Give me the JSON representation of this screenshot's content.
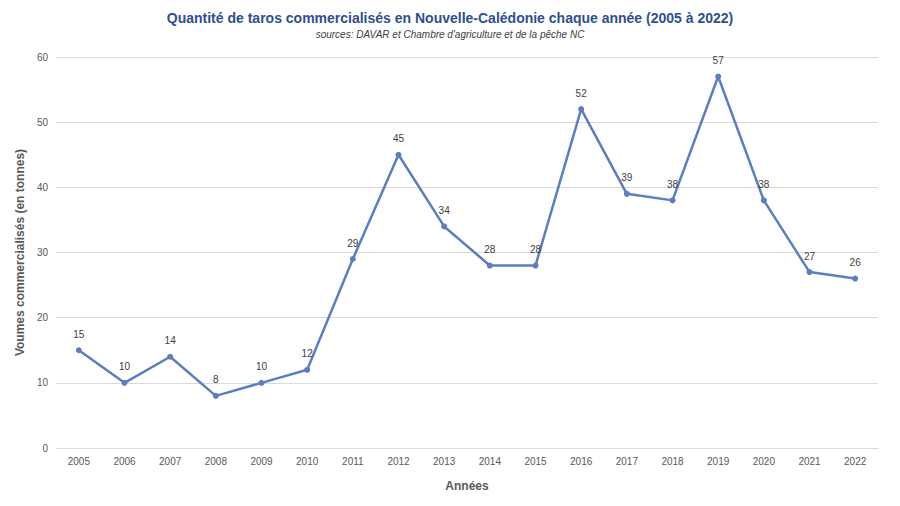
{
  "chart_data": {
    "type": "line",
    "title": "Quantité de taros commercialisés en Nouvelle-Calédonie chaque année (2005 à 2022)",
    "subtitle": "sources: DAVAR et Chambre d'agriculture et de la pêche NC",
    "x_label": "Années",
    "y_label": "Voumes commercialisés (en tonnes)",
    "categories": [
      "2005",
      "2006",
      "2007",
      "2008",
      "2009",
      "2010",
      "2011",
      "2012",
      "2013",
      "2014",
      "2015",
      "2016",
      "2017",
      "2018",
      "2019",
      "2020",
      "2021",
      "2022"
    ],
    "values": [
      15,
      10,
      14,
      8,
      10,
      12,
      29,
      45,
      34,
      28,
      28,
      52,
      39,
      38,
      57,
      38,
      27,
      26
    ],
    "color": "#5b7ec0",
    "marker": "circle",
    "ylim": [
      0,
      60
    ],
    "yticks": [
      0,
      10,
      20,
      30,
      40,
      50,
      60
    ],
    "grid": true,
    "data_labels": true
  }
}
